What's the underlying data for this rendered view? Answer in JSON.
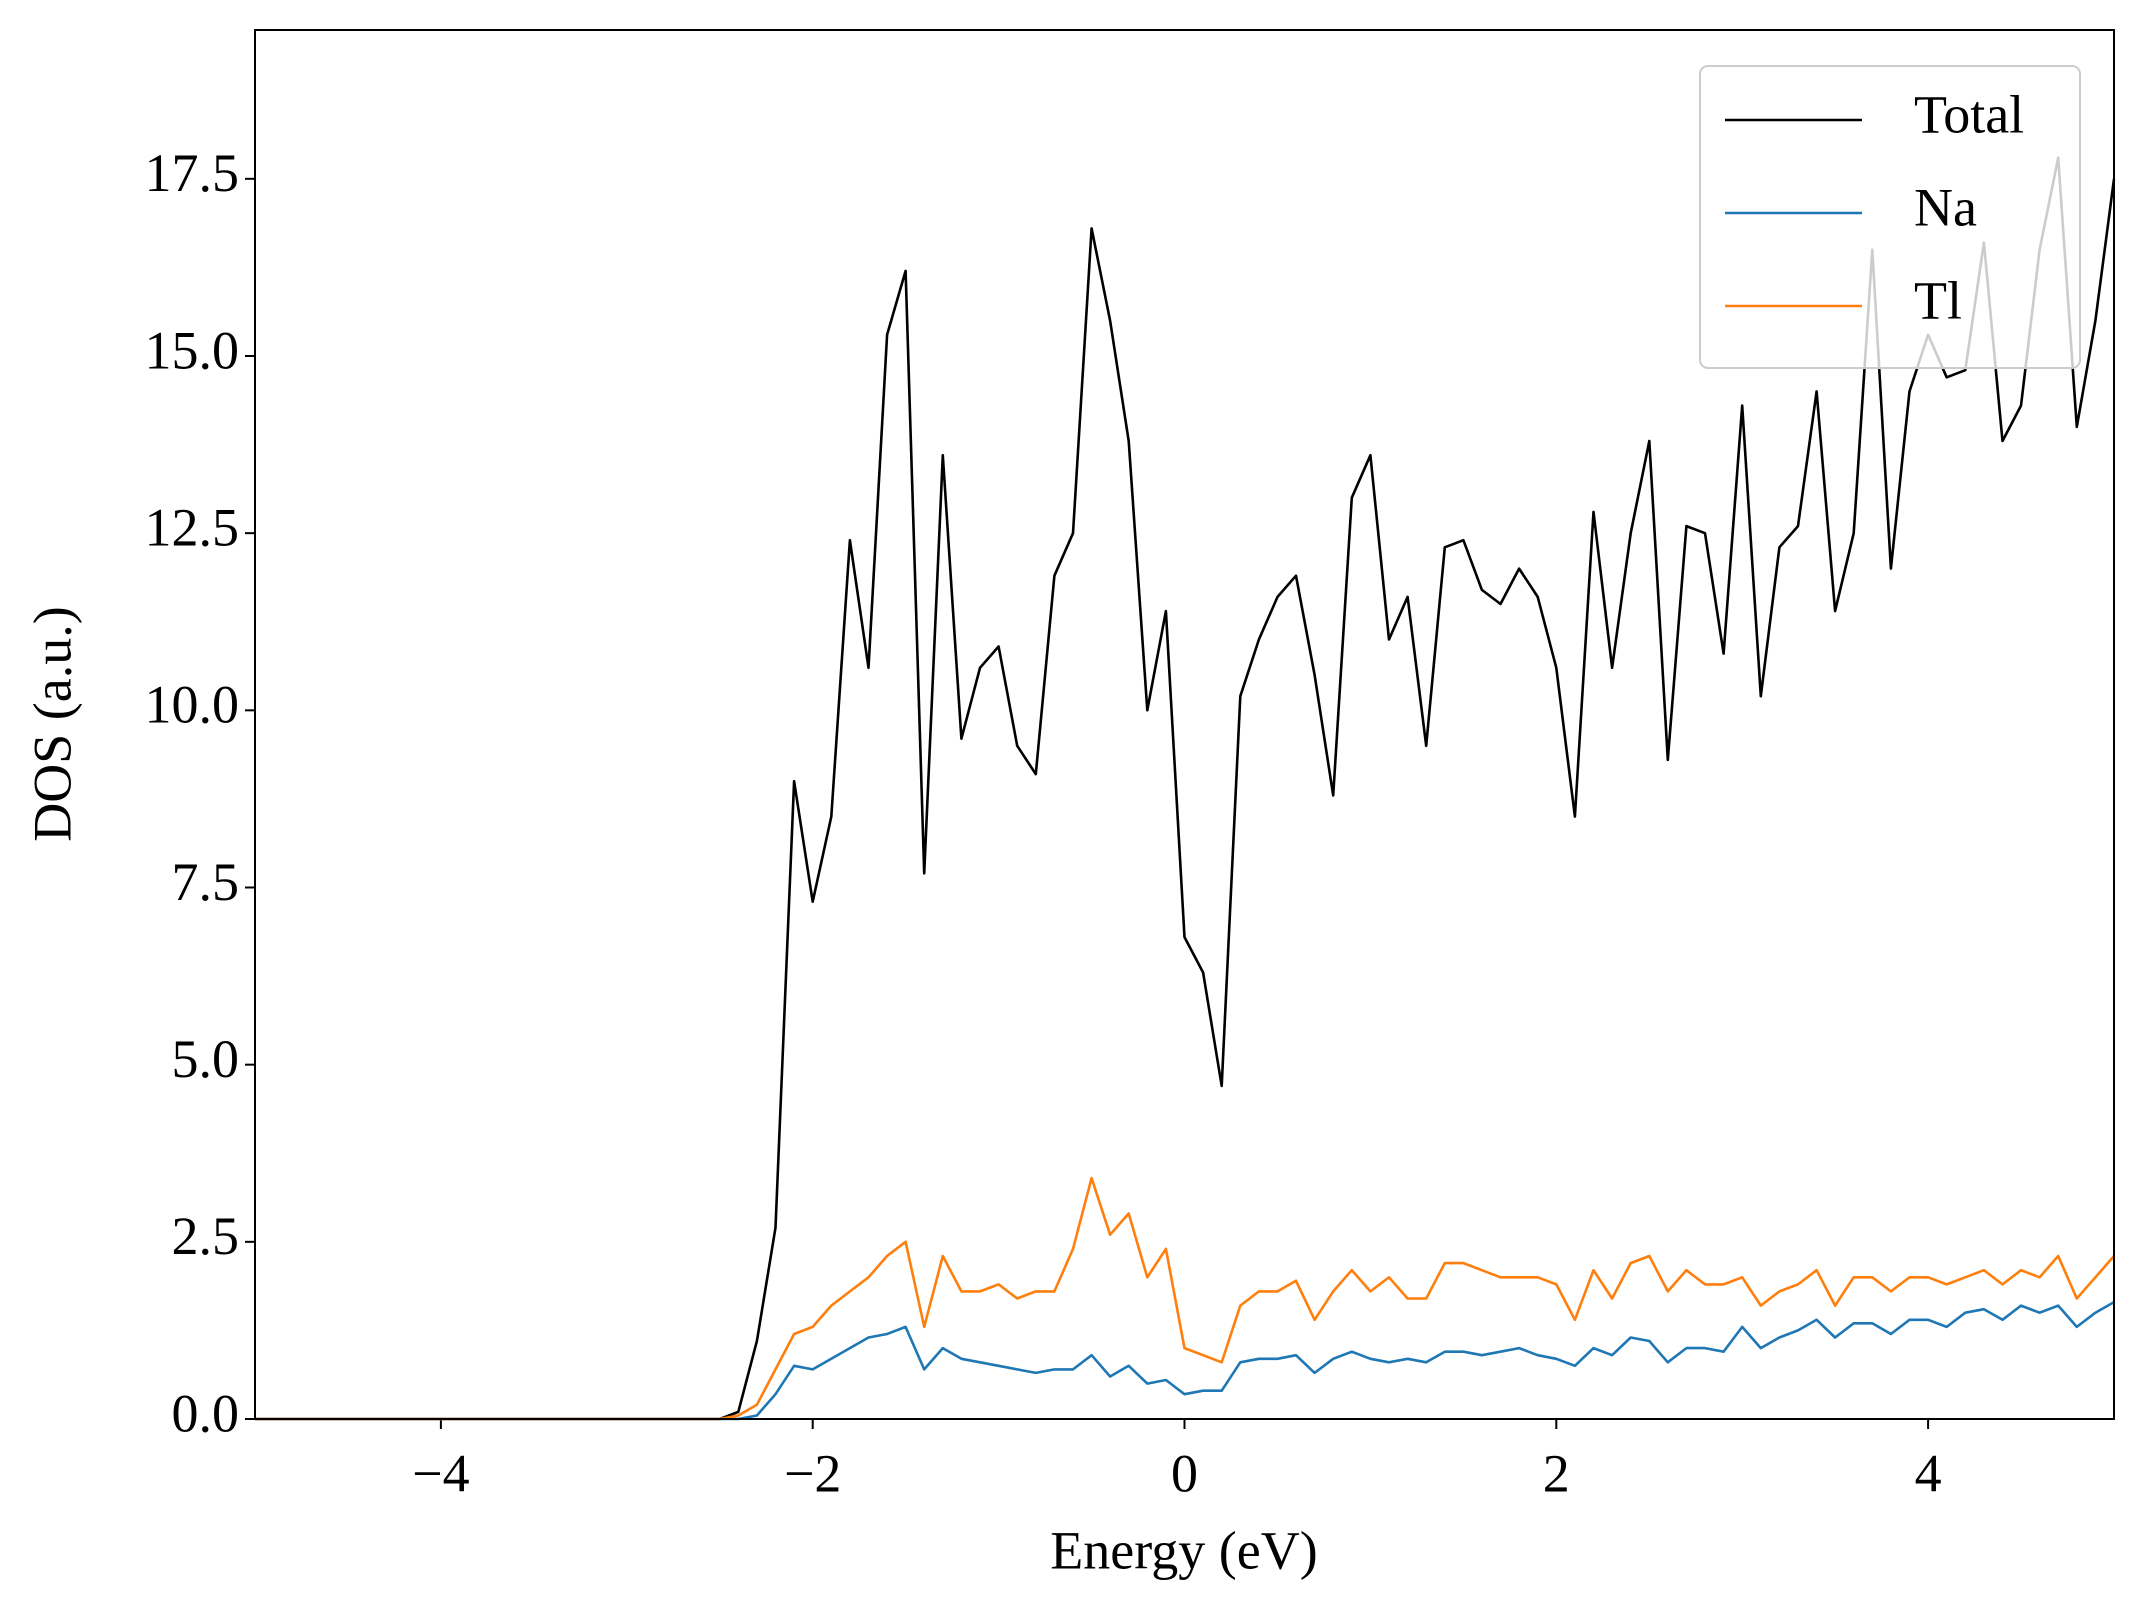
{
  "chart_data": {
    "type": "line",
    "xlabel": "Energy (eV)",
    "ylabel": "DOS (a.u.)",
    "x": [
      -5,
      -2.6,
      -2.5,
      -2.4,
      -2.3,
      -2.2,
      -2.1,
      -2.0,
      -1.9,
      -1.8,
      -1.7,
      -1.6,
      -1.5,
      -1.4,
      -1.3,
      -1.2,
      -1.1,
      -1.0,
      -0.9,
      -0.8,
      -0.7,
      -0.6,
      -0.5,
      -0.4,
      -0.3,
      -0.2,
      -0.1,
      0.0,
      0.1,
      0.2,
      0.3,
      0.4,
      0.5,
      0.6,
      0.7,
      0.8,
      0.9,
      1.0,
      1.1,
      1.2,
      1.3,
      1.4,
      1.5,
      1.6,
      1.7,
      1.8,
      1.9,
      2.0,
      2.1,
      2.2,
      2.3,
      2.4,
      2.5,
      2.6,
      2.7,
      2.8,
      2.9,
      3.0,
      3.1,
      3.2,
      3.3,
      3.4,
      3.5,
      3.6,
      3.7,
      3.8,
      3.9,
      4.0,
      4.1,
      4.2,
      4.3,
      4.4,
      4.5,
      4.6,
      4.7,
      4.8,
      4.9,
      5.0
    ],
    "series": [
      {
        "name": "Total",
        "color": "#000000",
        "values": [
          0,
          0,
          0,
          0.1,
          1.1,
          2.7,
          9.0,
          7.3,
          8.5,
          12.4,
          10.6,
          15.3,
          16.2,
          7.7,
          13.6,
          9.6,
          10.6,
          10.9,
          9.5,
          9.1,
          11.9,
          12.5,
          16.8,
          15.5,
          13.8,
          10.0,
          11.4,
          6.8,
          6.3,
          4.7,
          10.2,
          11.0,
          11.6,
          11.9,
          10.5,
          8.8,
          13.0,
          13.6,
          11.0,
          11.6,
          9.5,
          12.3,
          12.4,
          11.7,
          11.5,
          12.0,
          11.6,
          10.6,
          8.5,
          12.8,
          10.6,
          12.5,
          13.8,
          9.3,
          12.6,
          12.5,
          10.8,
          14.3,
          10.2,
          12.3,
          12.6,
          14.5,
          11.4,
          12.5,
          16.5,
          12.0,
          14.5,
          15.3,
          14.7,
          14.8,
          16.6,
          13.8,
          14.3,
          16.5,
          17.8,
          14.0,
          15.5,
          17.5
        ]
      },
      {
        "name": "Na",
        "color": "#1f77b4",
        "values": [
          0,
          0,
          0,
          0,
          0.05,
          0.35,
          0.75,
          0.7,
          0.85,
          1.0,
          1.15,
          1.2,
          1.3,
          0.7,
          1.0,
          0.85,
          0.8,
          0.75,
          0.7,
          0.65,
          0.7,
          0.7,
          0.9,
          0.6,
          0.75,
          0.5,
          0.55,
          0.35,
          0.4,
          0.4,
          0.8,
          0.85,
          0.85,
          0.9,
          0.65,
          0.85,
          0.95,
          0.85,
          0.8,
          0.85,
          0.8,
          0.95,
          0.95,
          0.9,
          0.95,
          1.0,
          0.9,
          0.85,
          0.75,
          1.0,
          0.9,
          1.15,
          1.1,
          0.8,
          1.0,
          1.0,
          0.95,
          1.3,
          1.0,
          1.15,
          1.25,
          1.4,
          1.15,
          1.35,
          1.35,
          1.2,
          1.4,
          1.4,
          1.3,
          1.5,
          1.55,
          1.4,
          1.6,
          1.5,
          1.6,
          1.3,
          1.5,
          1.65
        ]
      },
      {
        "name": "Tl",
        "color": "#ff7f0e",
        "values": [
          0,
          0,
          0,
          0.05,
          0.2,
          0.7,
          1.2,
          1.3,
          1.6,
          1.8,
          2.0,
          2.3,
          2.5,
          1.3,
          2.3,
          1.8,
          1.8,
          1.9,
          1.7,
          1.8,
          1.8,
          2.4,
          3.4,
          2.6,
          2.9,
          2.0,
          2.4,
          1.0,
          0.9,
          0.8,
          1.6,
          1.8,
          1.8,
          1.95,
          1.4,
          1.8,
          2.1,
          1.8,
          2.0,
          1.7,
          1.7,
          2.2,
          2.2,
          2.1,
          2.0,
          2.0,
          2.0,
          1.9,
          1.4,
          2.1,
          1.7,
          2.2,
          2.3,
          1.8,
          2.1,
          1.9,
          1.9,
          2.0,
          1.6,
          1.8,
          1.9,
          2.1,
          1.6,
          2.0,
          2.0,
          1.8,
          2.0,
          2.0,
          1.9,
          2.0,
          2.1,
          1.9,
          2.1,
          2.0,
          2.3,
          1.7,
          2.0,
          2.3
        ]
      }
    ],
    "xlim": [
      -5,
      5
    ],
    "xticks": [
      {
        "value": -4,
        "label": "−4"
      },
      {
        "value": -2,
        "label": "−2"
      },
      0,
      2,
      4
    ],
    "ylim": [
      0,
      19.6
    ],
    "yticks": [
      {
        "value": 0,
        "label": "0.0"
      },
      {
        "value": 2.5,
        "label": "2.5"
      },
      {
        "value": 5,
        "label": "5.0"
      },
      {
        "value": 7.5,
        "label": "7.5"
      },
      {
        "value": 10,
        "label": "10.0"
      },
      {
        "value": 12.5,
        "label": "12.5"
      },
      {
        "value": 15,
        "label": "15.0"
      },
      {
        "value": 17.5,
        "label": "17.5"
      }
    ],
    "grid": false,
    "legend": "upper right"
  }
}
